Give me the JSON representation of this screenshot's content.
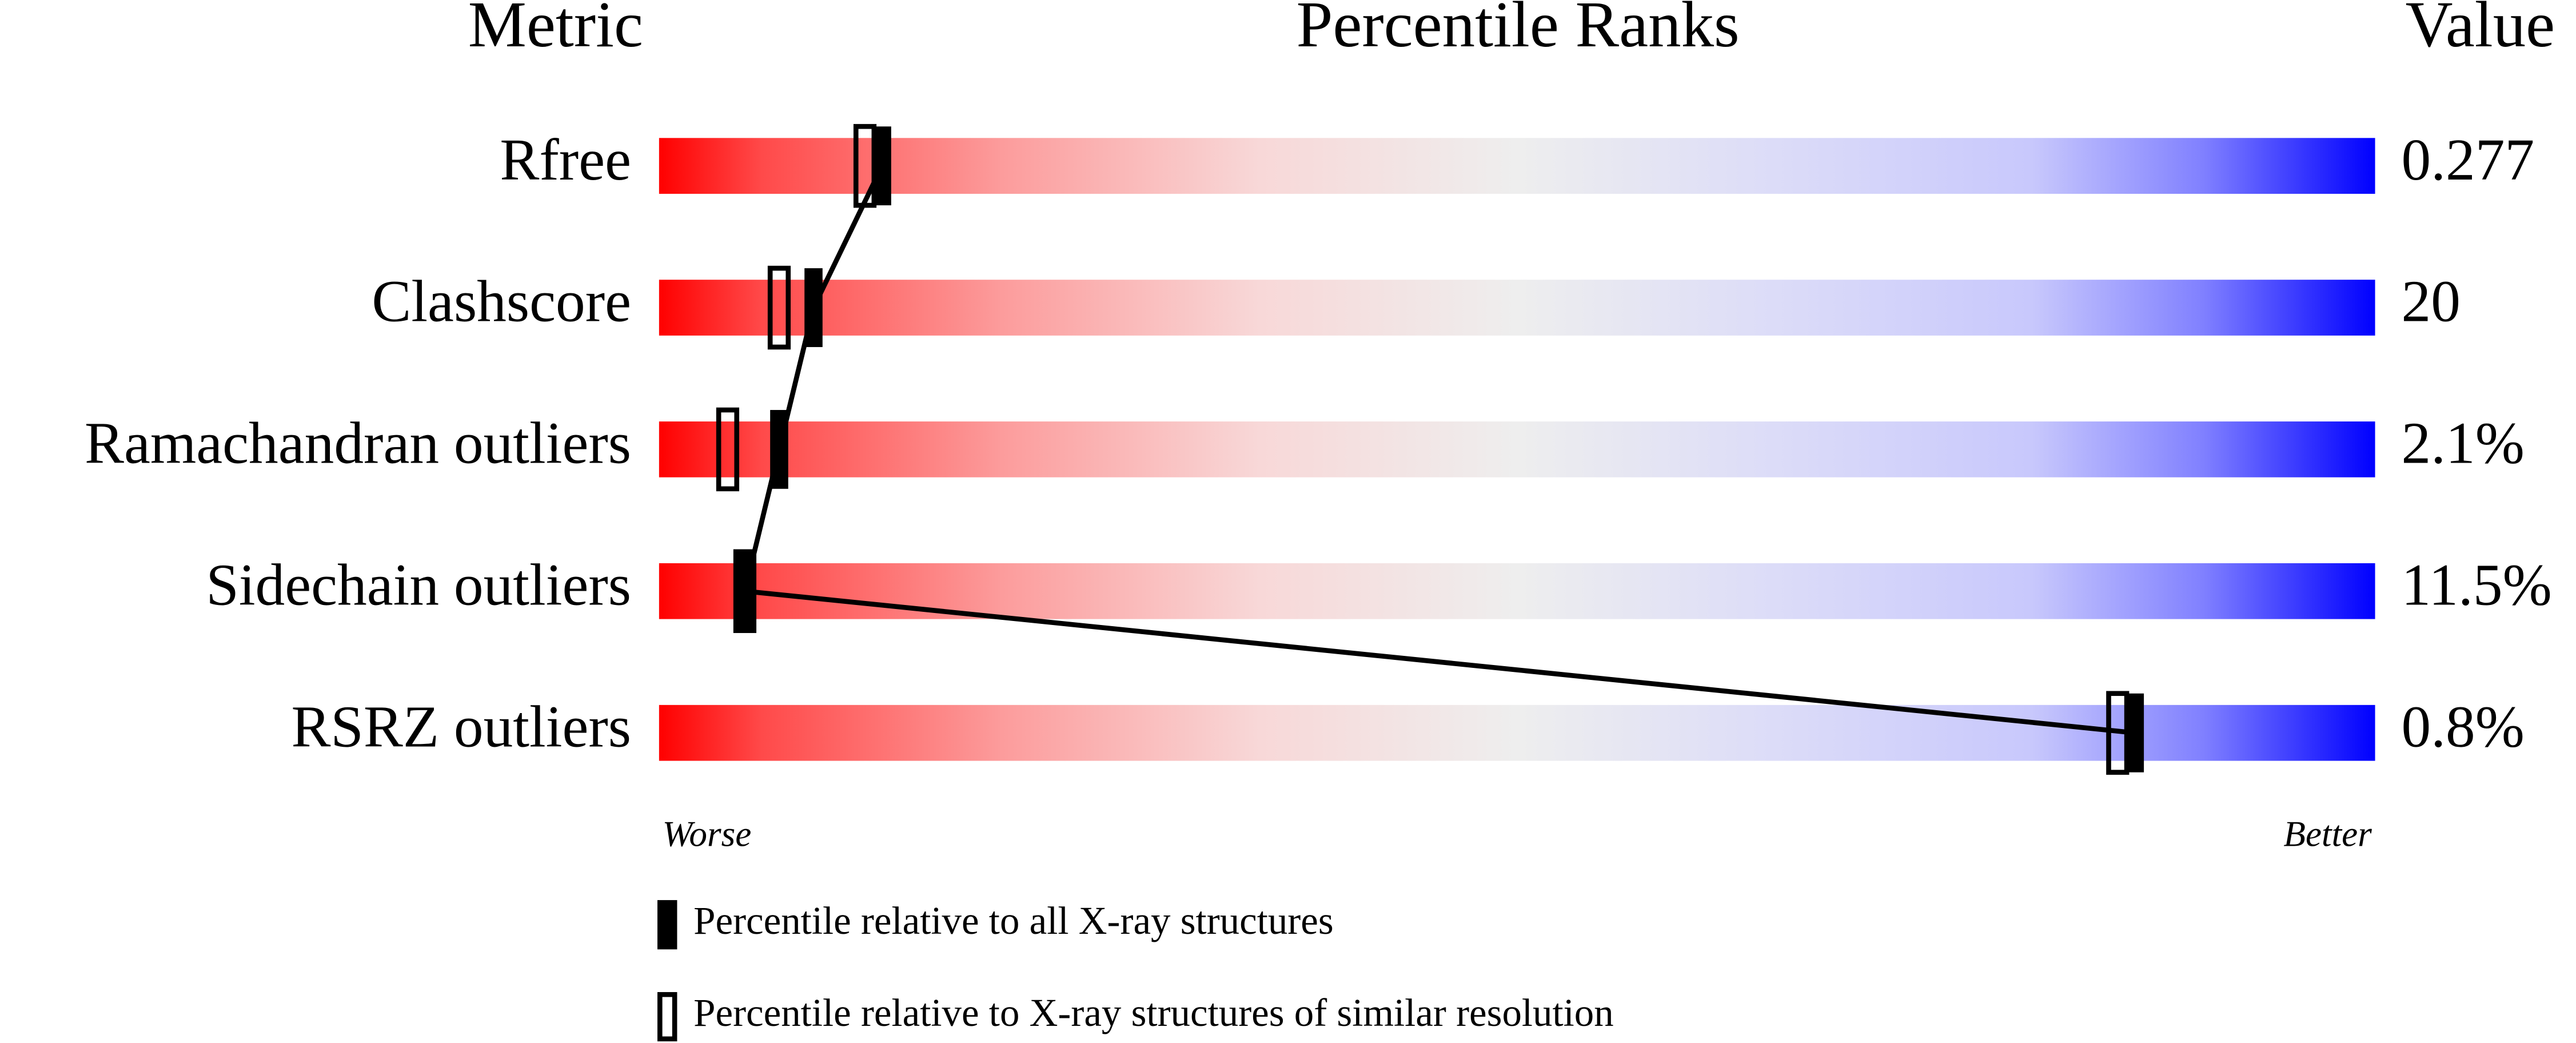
{
  "chart_data": {
    "type": "percentile-slider",
    "headers": [
      "Metric",
      "Percentile Ranks",
      "Value"
    ],
    "categories": [
      "Rfree",
      "Clashscore",
      "Ramachandran outliers",
      "Sidechain outliers",
      "RSRZ outliers"
    ],
    "metric_values": [
      "0.277",
      "20",
      "2.1%",
      "11.5%",
      "0.8%"
    ],
    "axis_labels": [
      "Worse",
      "Better"
    ],
    "xlim": [
      0,
      100
    ],
    "series": [
      {
        "name": "Percentile relative to all X-ray structures",
        "marker": "filled",
        "color": "#000000",
        "values": [
          13,
          9,
          7,
          5,
          86
        ]
      },
      {
        "name": "Percentile relative to X-ray structures of similar resolution",
        "marker": "open",
        "color": "#000000",
        "values": [
          12,
          7,
          4,
          5,
          85
        ]
      }
    ]
  }
}
